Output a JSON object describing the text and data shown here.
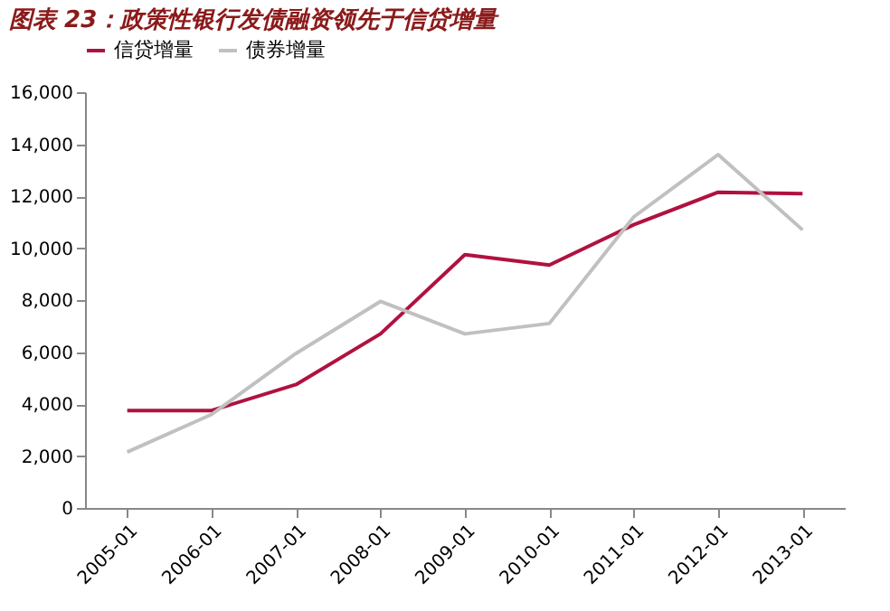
{
  "chart_data": {
    "type": "line",
    "title": "图表 23：政策性银行发债融资领先于信贷增量",
    "categories": [
      "2005-01",
      "2006-01",
      "2007-01",
      "2008-01",
      "2009-01",
      "2010-01",
      "2011-01",
      "2012-01",
      "2013-01"
    ],
    "series": [
      {
        "name": "信贷增量",
        "color": "#b0123f",
        "values": [
          3750,
          3750,
          4750,
          6700,
          9750,
          9350,
          10900,
          12150,
          12100
        ]
      },
      {
        "name": "债券增量",
        "color": "#c0c0c0",
        "values": [
          2150,
          3600,
          5950,
          7950,
          6700,
          7100,
          11200,
          13600,
          10700
        ]
      }
    ],
    "ylim": [
      0,
      16000
    ],
    "yticks": [
      0,
      {
        "value": 2000,
        "label": "2,000"
      },
      {
        "value": 4000,
        "label": "4,000"
      },
      {
        "value": 6000,
        "label": "6,000"
      },
      {
        "value": 8000,
        "label": "8,000"
      },
      {
        "value": 10000,
        "label": "10,000"
      },
      {
        "value": 12000,
        "label": "12,000"
      },
      {
        "value": 14000,
        "label": "14,000"
      },
      {
        "value": 16000,
        "label": "16,000"
      }
    ],
    "grid": false,
    "legend": "top",
    "marker": "none",
    "line_style": "solid"
  }
}
